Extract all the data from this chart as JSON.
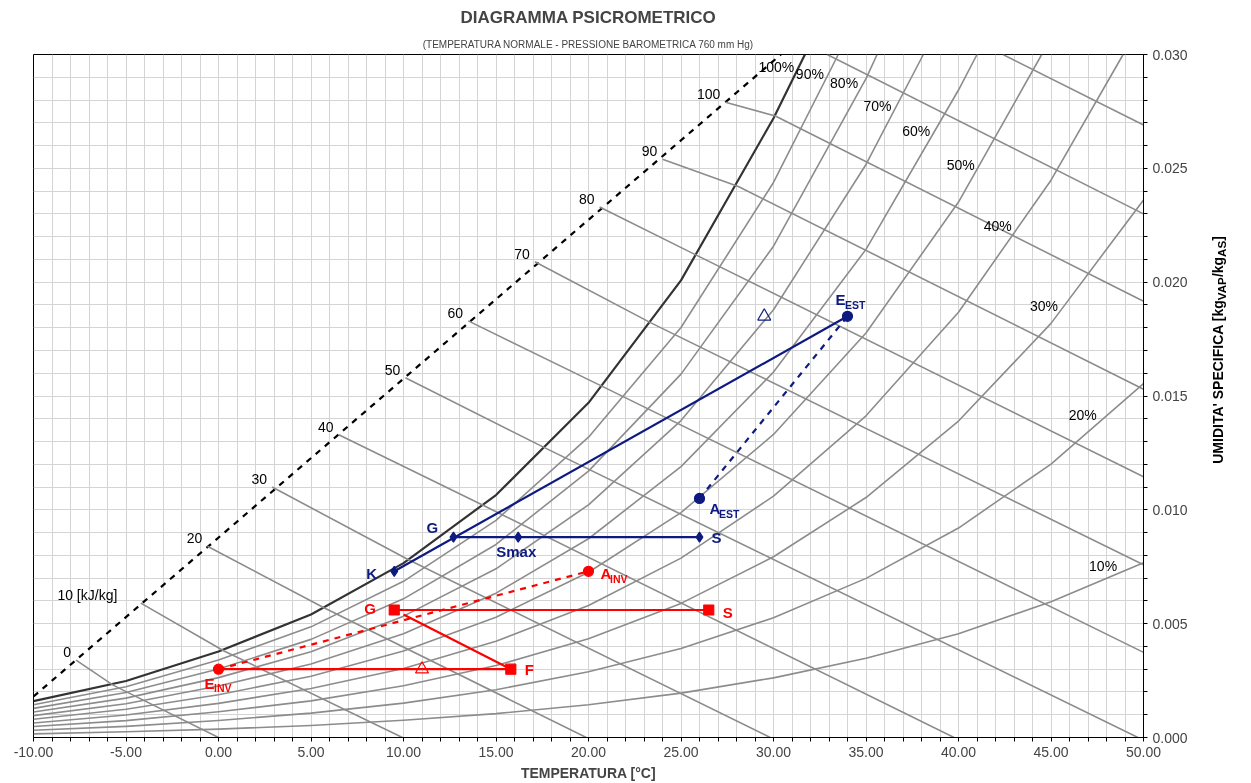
{
  "chart_data": {
    "type": "line",
    "title": "DIAGRAMMA PSICROMETRICO",
    "subtitle": "(TEMPERATURA NORMALE - PRESSIONE BAROMETRICA 760 mm Hg)",
    "xlabel": "TEMPERATURA [°C]",
    "ylabel": "UMIDITA' SPECIFICA [kg$_{VAP}$/kg$_{AS}$]",
    "xlim": [
      -10,
      50
    ],
    "ylim": [
      0,
      0.03
    ],
    "grid": true,
    "xticks": [
      {
        "value": -10,
        "label": "-10.00"
      },
      {
        "value": -9,
        "label": null
      },
      {
        "value": -8,
        "label": null
      },
      {
        "value": -7,
        "label": null
      },
      {
        "value": -6,
        "label": null
      },
      {
        "value": -5,
        "label": "-5.00"
      },
      {
        "value": -4,
        "label": null
      },
      {
        "value": -3,
        "label": null
      },
      {
        "value": -2,
        "label": null
      },
      {
        "value": -1,
        "label": null
      },
      {
        "value": 0,
        "label": "0.00"
      },
      {
        "value": 1,
        "label": null
      },
      {
        "value": 2,
        "label": null
      },
      {
        "value": 3,
        "label": null
      },
      {
        "value": 4,
        "label": null
      },
      {
        "value": 5,
        "label": "5.00"
      },
      {
        "value": 6,
        "label": null
      },
      {
        "value": 7,
        "label": null
      },
      {
        "value": 8,
        "label": null
      },
      {
        "value": 9,
        "label": null
      },
      {
        "value": 10,
        "label": "10.00"
      },
      {
        "value": 11,
        "label": null
      },
      {
        "value": 12,
        "label": null
      },
      {
        "value": 13,
        "label": null
      },
      {
        "value": 14,
        "label": null
      },
      {
        "value": 15,
        "label": "15.00"
      },
      {
        "value": 16,
        "label": null
      },
      {
        "value": 17,
        "label": null
      },
      {
        "value": 18,
        "label": null
      },
      {
        "value": 19,
        "label": null
      },
      {
        "value": 20,
        "label": "20.00"
      },
      {
        "value": 21,
        "label": null
      },
      {
        "value": 22,
        "label": null
      },
      {
        "value": 23,
        "label": null
      },
      {
        "value": 24,
        "label": null
      },
      {
        "value": 25,
        "label": "25.00"
      },
      {
        "value": 26,
        "label": null
      },
      {
        "value": 27,
        "label": null
      },
      {
        "value": 28,
        "label": null
      },
      {
        "value": 29,
        "label": null
      },
      {
        "value": 30,
        "label": "30.00"
      },
      {
        "value": 31,
        "label": null
      },
      {
        "value": 32,
        "label": null
      },
      {
        "value": 33,
        "label": null
      },
      {
        "value": 34,
        "label": null
      },
      {
        "value": 35,
        "label": "35.00"
      },
      {
        "value": 36,
        "label": null
      },
      {
        "value": 37,
        "label": null
      },
      {
        "value": 38,
        "label": null
      },
      {
        "value": 39,
        "label": null
      },
      {
        "value": 40,
        "label": "40.00"
      },
      {
        "value": 41,
        "label": null
      },
      {
        "value": 42,
        "label": null
      },
      {
        "value": 43,
        "label": null
      },
      {
        "value": 44,
        "label": null
      },
      {
        "value": 45,
        "label": "45.00"
      },
      {
        "value": 46,
        "label": null
      },
      {
        "value": 47,
        "label": null
      },
      {
        "value": 48,
        "label": null
      },
      {
        "value": 49,
        "label": null
      },
      {
        "value": 50,
        "label": "50.00"
      }
    ],
    "yticks": [
      {
        "value": 0,
        "label": "0.000"
      },
      {
        "value": 0.001,
        "label": null
      },
      {
        "value": 0.002,
        "label": null
      },
      {
        "value": 0.003,
        "label": null
      },
      {
        "value": 0.004,
        "label": null
      },
      {
        "value": 0.005,
        "label": "0.005"
      },
      {
        "value": 0.006,
        "label": null
      },
      {
        "value": 0.007,
        "label": null
      },
      {
        "value": 0.008,
        "label": null
      },
      {
        "value": 0.009,
        "label": null
      },
      {
        "value": 0.01,
        "label": "0.010"
      },
      {
        "value": 0.011,
        "label": null
      },
      {
        "value": 0.012,
        "label": null
      },
      {
        "value": 0.013,
        "label": null
      },
      {
        "value": 0.014,
        "label": null
      },
      {
        "value": 0.015,
        "label": "0.015"
      },
      {
        "value": 0.016,
        "label": null
      },
      {
        "value": 0.017,
        "label": null
      },
      {
        "value": 0.018,
        "label": null
      },
      {
        "value": 0.019,
        "label": null
      },
      {
        "value": 0.02,
        "label": "0.020"
      },
      {
        "value": 0.021,
        "label": null
      },
      {
        "value": 0.022,
        "label": null
      },
      {
        "value": 0.023,
        "label": null
      },
      {
        "value": 0.024,
        "label": null
      },
      {
        "value": 0.025,
        "label": "0.025"
      },
      {
        "value": 0.026,
        "label": null
      },
      {
        "value": 0.027,
        "label": null
      },
      {
        "value": 0.028,
        "label": null
      },
      {
        "value": 0.029,
        "label": null
      },
      {
        "value": 0.03,
        "label": "0.030"
      }
    ],
    "series": [
      {
        "color": "#000000",
        "line_style": "dashed",
        "x": [
          -10,
          30.4
        ],
        "values": [
          0.0018,
          0.03
        ]
      },
      {
        "color": "#8c8c8c",
        "x": [
          -10,
          -5,
          0,
          5,
          10,
          15,
          20,
          25,
          30,
          35,
          40,
          45,
          50
        ],
        "values": [
          0.00016,
          0.00025,
          0.00037,
          0.00053,
          0.00076,
          0.00105,
          0.00144,
          0.00195,
          0.00262,
          0.00348,
          0.00456,
          0.00596,
          0.00768
        ]
      },
      {
        "color": "#8c8c8c",
        "x": [
          -10,
          -5,
          0,
          5,
          10,
          15,
          20,
          25,
          30,
          35,
          40,
          45,
          50
        ],
        "values": [
          0.00032,
          0.00049,
          0.00075,
          0.00107,
          0.00151,
          0.0021,
          0.00289,
          0.00391,
          0.00526,
          0.00699,
          0.0092,
          0.01201,
          0.01554
        ]
      },
      {
        "color": "#8c8c8c",
        "x": [
          -10,
          -5,
          0,
          5,
          10,
          15,
          20,
          25,
          30,
          35,
          40,
          45,
          50
        ],
        "values": [
          0.00048,
          0.00074,
          0.00113,
          0.00161,
          0.00227,
          0.00316,
          0.00434,
          0.00589,
          0.00794,
          0.01054,
          0.0139,
          0.01819,
          0.02361
        ]
      },
      {
        "color": "#8c8c8c",
        "x": [
          -10,
          -5,
          0,
          5,
          10,
          15,
          20,
          25,
          30,
          35,
          40,
          45,
          48.9
        ],
        "values": [
          0.00064,
          0.00099,
          0.0015,
          0.00215,
          0.00303,
          0.00423,
          0.0058,
          0.00788,
          0.0106,
          0.01413,
          0.01868,
          0.02448,
          0.03
        ]
      },
      {
        "color": "#8c8c8c",
        "x": [
          -10,
          -5,
          0,
          5,
          10,
          15,
          20,
          25,
          30,
          35,
          40,
          44.5
        ],
        "values": [
          0.0008,
          0.00124,
          0.00188,
          0.00269,
          0.0038,
          0.00528,
          0.00726,
          0.00988,
          0.01331,
          0.01777,
          0.02352,
          0.03
        ]
      },
      {
        "color": "#8c8c8c",
        "x": [
          -10,
          -5,
          0,
          5,
          10,
          15,
          20,
          25,
          30,
          35,
          40,
          41
        ],
        "values": [
          0.00096,
          0.00148,
          0.00226,
          0.00323,
          0.00456,
          0.00634,
          0.00873,
          0.0119,
          0.01605,
          0.02144,
          0.02844,
          0.03
        ]
      },
      {
        "color": "#8c8c8c",
        "x": [
          -10,
          -5,
          0,
          5,
          10,
          15,
          20,
          25,
          30,
          35,
          38.1
        ],
        "values": [
          0.00112,
          0.00173,
          0.00263,
          0.00377,
          0.00533,
          0.00741,
          0.01022,
          0.01392,
          0.01879,
          0.02517,
          0.03
        ]
      },
      {
        "color": "#8c8c8c",
        "x": [
          -10,
          -5,
          0,
          5,
          10,
          15,
          20,
          25,
          30,
          35,
          35.6
        ],
        "values": [
          0.00128,
          0.00198,
          0.00301,
          0.00431,
          0.00609,
          0.00848,
          0.0117,
          0.01596,
          0.02158,
          0.02894,
          0.03
        ]
      },
      {
        "color": "#8c8c8c",
        "x": [
          -10,
          -5,
          0,
          5,
          10,
          15,
          20,
          25,
          30,
          33.5
        ],
        "values": [
          0.00144,
          0.00223,
          0.0034,
          0.00486,
          0.00686,
          0.00954,
          0.01319,
          0.01801,
          0.02438,
          0.03
        ]
      },
      {
        "color": "#333333",
        "x": [
          -10,
          -5,
          0,
          5,
          10,
          15,
          20,
          25,
          30,
          31.7
        ],
        "values": [
          0.0016,
          0.00248,
          0.00378,
          0.0054,
          0.00766,
          0.01065,
          0.0147,
          0.02008,
          0.0272,
          0.03
        ]
      },
      {
        "color": "#8c8c8c",
        "x": [
          -7.7,
          -5.7,
          0
        ],
        "values": [
          0.0034,
          0.0023,
          0
        ]
      },
      {
        "color": "#8c8c8c",
        "x": [
          -4.2,
          0.3,
          9.94
        ],
        "values": [
          0.0059,
          0.0038,
          0
        ]
      },
      {
        "color": "#8c8c8c",
        "x": [
          -0.6,
          5.7,
          19.88
        ],
        "values": [
          0.0084,
          0.0057,
          0
        ]
      },
      {
        "color": "#8c8c8c",
        "x": [
          2.9,
          10.3,
          29.82
        ],
        "values": [
          0.011,
          0.0078,
          0
        ]
      },
      {
        "color": "#8c8c8c",
        "x": [
          6.5,
          14.3,
          39.76
        ],
        "values": [
          0.0133,
          0.0102,
          0
        ]
      },
      {
        "color": "#8c8c8c",
        "x": [
          10.1,
          17.7,
          49.7
        ],
        "values": [
          0.0158,
          0.0127,
          0
        ]
      },
      {
        "color": "#8c8c8c",
        "x": [
          13.5,
          20.8,
          50
        ],
        "values": [
          0.0183,
          0.0154,
          0.00374
        ]
      },
      {
        "color": "#8c8c8c",
        "x": [
          17.1,
          23.4,
          50
        ],
        "values": [
          0.0209,
          0.0182,
          0.00759
        ]
      },
      {
        "color": "#8c8c8c",
        "x": [
          20.6,
          25.8,
          50
        ],
        "values": [
          0.0233,
          0.0212,
          0.01145
        ]
      },
      {
        "color": "#8c8c8c",
        "x": [
          24.0,
          28.1,
          50
        ],
        "values": [
          0.0254,
          0.0242,
          0.0153
        ]
      },
      {
        "color": "#8c8c8c",
        "x": [
          27.4,
          30.1,
          50
        ],
        "values": [
          0.0279,
          0.0273,
          0.01916
        ]
      },
      {
        "color": "#8c8c8c",
        "x": [
          32.9,
          50
        ],
        "values": [
          0.03,
          0.023
        ]
      },
      {
        "color": "#8c8c8c",
        "x": [
          42.4,
          50
        ],
        "values": [
          0.03,
          0.0269
        ]
      },
      {
        "color": "#0d1a80",
        "x": [
          9.5,
          34
        ],
        "values": [
          0.0073,
          0.0185
        ]
      },
      {
        "color": "#0d1a80",
        "x": [
          12.7,
          26
        ],
        "values": [
          0.0088,
          0.0088
        ]
      },
      {
        "color": "#0d1a80",
        "line_style": "dashed",
        "x": [
          26,
          34
        ],
        "values": [
          0.0105,
          0.0185
        ]
      },
      {
        "color": "#ff0000",
        "x": [
          0,
          15.8
        ],
        "values": [
          0.003,
          0.003
        ]
      },
      {
        "color": "#ff0000",
        "x": [
          15.8,
          10
        ],
        "values": [
          0.003,
          0.0054
        ]
      },
      {
        "color": "#ff0000",
        "x": [
          9.5,
          26.5
        ],
        "values": [
          0.0056,
          0.0056
        ]
      },
      {
        "color": "#ff0000",
        "line_style": "dashed",
        "x": [
          0,
          20
        ],
        "values": [
          0.003,
          0.0073
        ]
      },
      {
        "type": "scatter",
        "color": "#0d1a80",
        "marker": "diamond",
        "x": [
          9.5,
          12.7,
          16.2,
          26
        ],
        "values": [
          0.0073,
          0.0088,
          0.0088,
          0.0088
        ],
        "value_labels": [
          "K",
          "G",
          "Smax",
          "S"
        ]
      },
      {
        "type": "scatter",
        "color": "#0d1a80",
        "marker": "circle",
        "x": [
          26,
          34
        ],
        "values": [
          0.0105,
          0.0185
        ],
        "value_labels": [
          "A$_{EST}$",
          "E$_{EST}$"
        ]
      },
      {
        "type": "scatter",
        "color": "#ff0000",
        "marker": "square",
        "x": [
          9.5,
          26.5,
          15.8
        ],
        "values": [
          0.0056,
          0.0056,
          0.003
        ],
        "value_labels": [
          "G",
          "S",
          "F"
        ]
      },
      {
        "type": "scatter",
        "color": "#ff0000",
        "marker": "circle",
        "x": [
          0,
          20
        ],
        "values": [
          0.003,
          0.0073
        ],
        "value_labels": [
          "E$_{INV}$",
          "A$_{INV}$"
        ]
      },
      {
        "type": "scatter",
        "color": "#0d1a80",
        "marker": "triangle",
        "x": [
          29.5
        ],
        "values": [
          0.0185
        ]
      },
      {
        "type": "scatter",
        "color": "#ff0000",
        "marker": "triangle",
        "x": [
          11
        ],
        "values": [
          0.003
        ]
      }
    ],
    "annotations": [
      {
        "text": "0",
        "x": -7.7,
        "y": 0.0034
      },
      {
        "text": "10 [kJ/kg]",
        "x": -4.2,
        "y": 0.0059
      },
      {
        "text": "20",
        "x": -0.6,
        "y": 0.0084
      },
      {
        "text": "30",
        "x": 2.9,
        "y": 0.011
      },
      {
        "text": "40",
        "x": 6.5,
        "y": 0.0133
      },
      {
        "text": "50",
        "x": 10.1,
        "y": 0.0158
      },
      {
        "text": "60",
        "x": 13.5,
        "y": 0.0183
      },
      {
        "text": "70",
        "x": 17.1,
        "y": 0.0209
      },
      {
        "text": "80",
        "x": 20.6,
        "y": 0.0233
      },
      {
        "text": "90",
        "x": 24.0,
        "y": 0.0254
      },
      {
        "text": "100",
        "x": 27.4,
        "y": 0.0279
      },
      {
        "text": "100%",
        "x": 31.15,
        "y": 0.0291
      },
      {
        "text": "90%",
        "x": 32.75,
        "y": 0.0288
      },
      {
        "text": "80%",
        "x": 34.6,
        "y": 0.0284
      },
      {
        "text": "70%",
        "x": 36.4,
        "y": 0.0274
      },
      {
        "text": "60%",
        "x": 38.5,
        "y": 0.0263
      },
      {
        "text": "50%",
        "x": 40.9,
        "y": 0.0248
      },
      {
        "text": "40%",
        "x": 42.9,
        "y": 0.0221
      },
      {
        "text": "30%",
        "x": 45.4,
        "y": 0.0186
      },
      {
        "text": "20%",
        "x": 47.5,
        "y": 0.0138
      },
      {
        "text": "10%",
        "x": 48.6,
        "y": 0.0072
      }
    ]
  }
}
